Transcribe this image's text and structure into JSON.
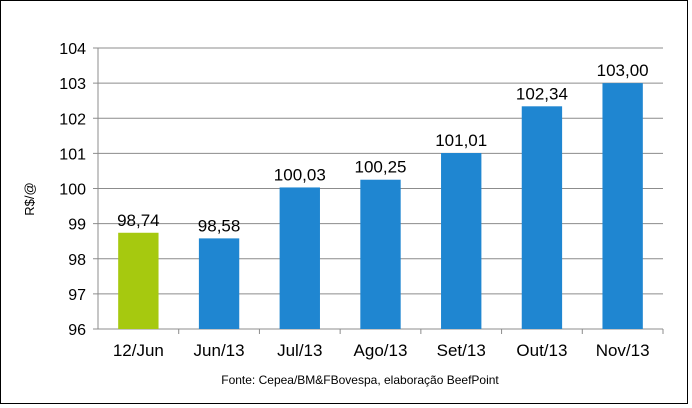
{
  "chart_data": {
    "type": "bar",
    "title": "",
    "xlabel": "",
    "ylabel": "R$/@",
    "ylim": [
      96,
      104
    ],
    "yticks": [
      96,
      97,
      98,
      99,
      100,
      101,
      102,
      103,
      104
    ],
    "grid": true,
    "categories": [
      "12/Jun",
      "Jun/13",
      "Jul/13",
      "Ago/13",
      "Set/13",
      "Out/13",
      "Nov/13"
    ],
    "values": [
      98.74,
      98.58,
      100.03,
      100.25,
      101.01,
      102.34,
      103.0
    ],
    "data_labels": [
      "98,74",
      "98,58",
      "100,03",
      "100,25",
      "101,01",
      "102,34",
      "103,00"
    ],
    "bar_colors": [
      "#a6c90f",
      "#1f86d1",
      "#1f86d1",
      "#1f86d1",
      "#1f86d1",
      "#1f86d1",
      "#1f86d1"
    ],
    "source": "Fonte:  Cepea/BM&FBovespa,  elaboração  BeefPoint"
  }
}
